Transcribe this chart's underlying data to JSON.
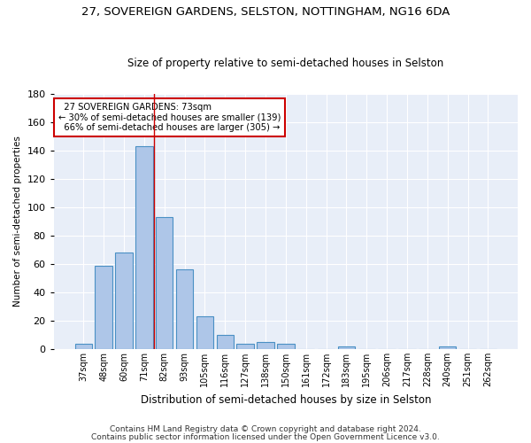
{
  "title1": "27, SOVEREIGN GARDENS, SELSTON, NOTTINGHAM, NG16 6DA",
  "title2": "Size of property relative to semi-detached houses in Selston",
  "xlabel": "Distribution of semi-detached houses by size in Selston",
  "ylabel": "Number of semi-detached properties",
  "footnote1": "Contains HM Land Registry data © Crown copyright and database right 2024.",
  "footnote2": "Contains public sector information licensed under the Open Government Licence v3.0.",
  "categories": [
    "37sqm",
    "48sqm",
    "60sqm",
    "71sqm",
    "82sqm",
    "93sqm",
    "105sqm",
    "116sqm",
    "127sqm",
    "138sqm",
    "150sqm",
    "161sqm",
    "172sqm",
    "183sqm",
    "195sqm",
    "206sqm",
    "217sqm",
    "228sqm",
    "240sqm",
    "251sqm",
    "262sqm"
  ],
  "values": [
    4,
    59,
    68,
    143,
    93,
    56,
    23,
    10,
    4,
    5,
    4,
    0,
    0,
    2,
    0,
    0,
    0,
    0,
    2,
    0,
    0
  ],
  "bar_color": "#aec6e8",
  "bar_edge_color": "#4a90c4",
  "bar_edge_width": 0.8,
  "background_color": "#e8eef8",
  "grid_color": "#ffffff",
  "redline_x": 3.5,
  "property_label": "27 SOVEREIGN GARDENS: 73sqm",
  "smaller_pct": 30,
  "smaller_count": 139,
  "larger_pct": 66,
  "larger_count": 305,
  "annotation_box_edge": "#cc0000",
  "redline_color": "#cc0000",
  "ylim": [
    0,
    180
  ],
  "yticks": [
    0,
    20,
    40,
    60,
    80,
    100,
    120,
    140,
    160,
    180
  ]
}
